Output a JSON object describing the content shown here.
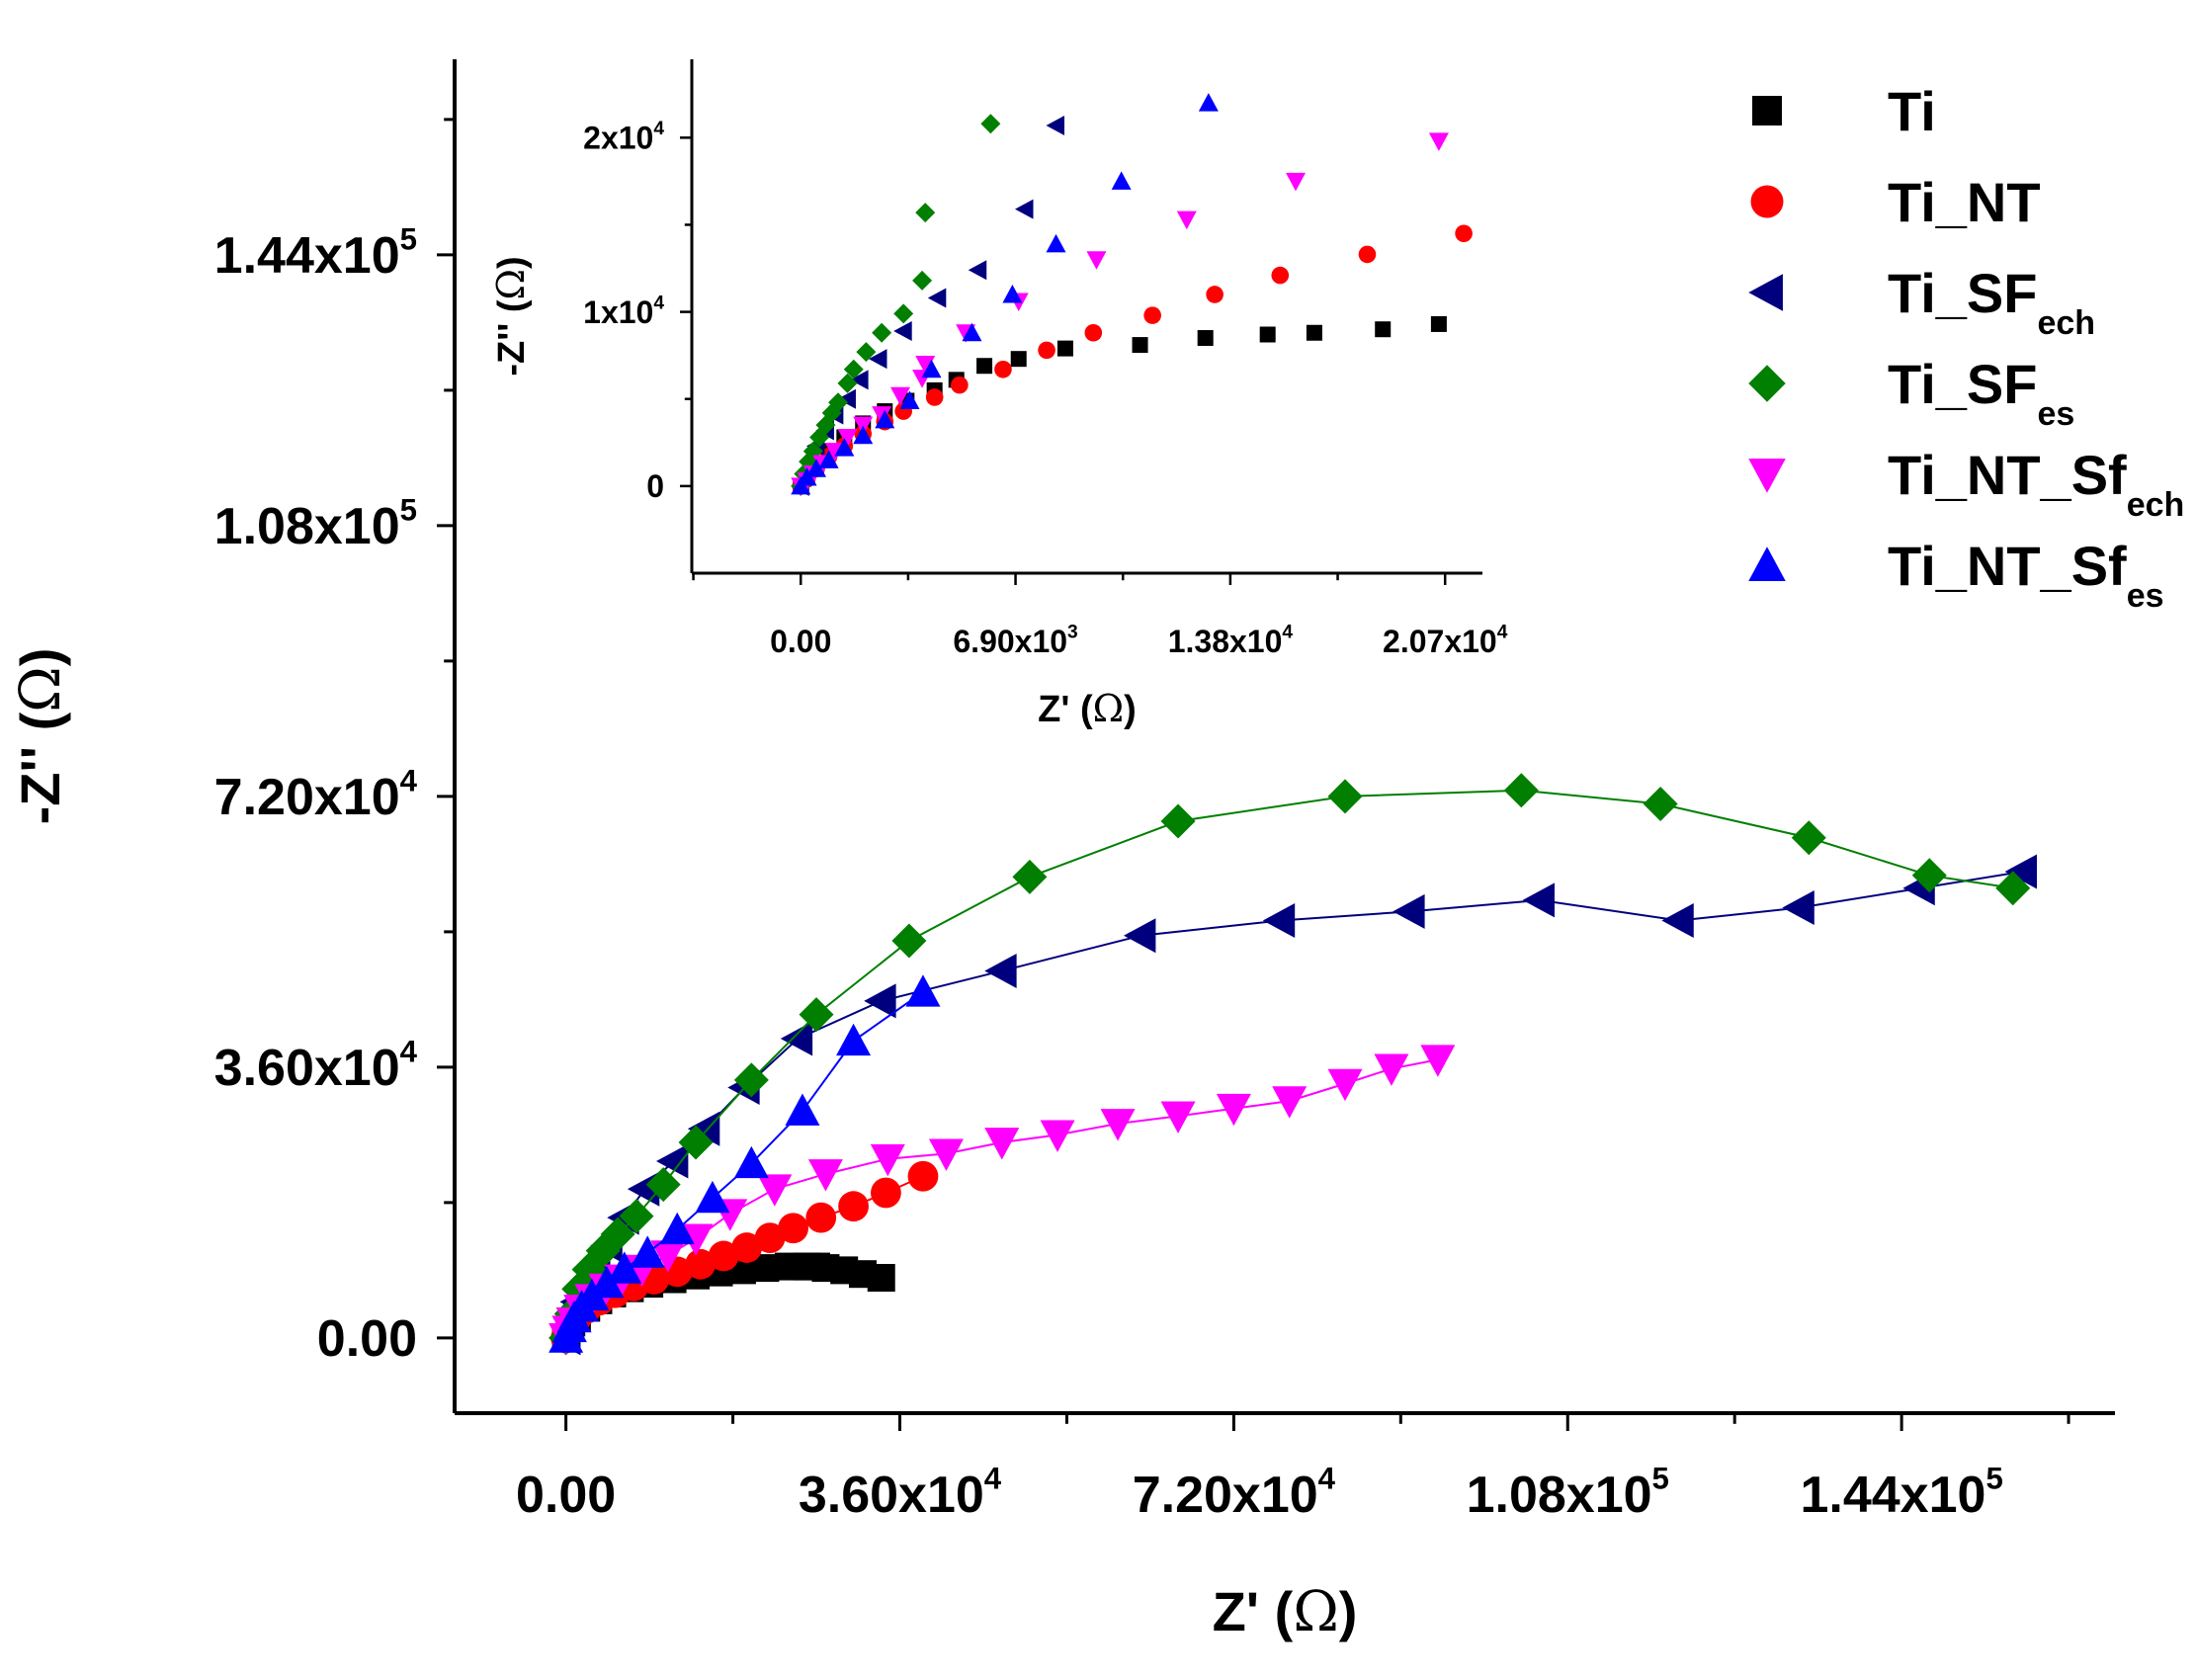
{
  "chart_data": [
    {
      "id": "main",
      "type": "scatter",
      "xlabel": "Z'",
      "ylabel": "-Z''",
      "unit": "Ω",
      "xlim": [
        -12000,
        167000
      ],
      "ylim": [
        -10000,
        170000
      ],
      "xticks": [
        {
          "value": 0,
          "mant": "0.00",
          "exp": ""
        },
        {
          "value": 36000,
          "mant": "3.60x10",
          "exp": "4"
        },
        {
          "value": 72000,
          "mant": "7.20x10",
          "exp": "4"
        },
        {
          "value": 108000,
          "mant": "1.08x10",
          "exp": "5"
        },
        {
          "value": 144000,
          "mant": "1.44x10",
          "exp": "5"
        }
      ],
      "yticks": [
        {
          "value": 0,
          "mant": "0.00",
          "exp": ""
        },
        {
          "value": 36000,
          "mant": "3.60x10",
          "exp": "4"
        },
        {
          "value": 72000,
          "mant": "7.20x10",
          "exp": "4"
        },
        {
          "value": 108000,
          "mant": "1.08x10",
          "exp": "5"
        },
        {
          "value": 144000,
          "mant": "1.44x10",
          "exp": "5"
        }
      ],
      "series": [
        {
          "name": "Ti",
          "marker": "square",
          "color": "#000000",
          "line": true,
          "points": [
            [
              0,
              0
            ],
            [
              500,
              1500
            ],
            [
              1200,
              2800
            ],
            [
              2200,
              4000
            ],
            [
              3500,
              5000
            ],
            [
              5000,
              5900
            ],
            [
              6900,
              6600
            ],
            [
              9000,
              7200
            ],
            [
              11500,
              7800
            ],
            [
              14000,
              8300
            ],
            [
              16500,
              8700
            ],
            [
              19000,
              9000
            ],
            [
              21500,
              9300
            ],
            [
              24000,
              9500
            ],
            [
              26000,
              9500
            ],
            [
              28000,
              9300
            ],
            [
              30000,
              9000
            ],
            [
              32000,
              8500
            ],
            [
              34000,
              8000
            ],
            [
              27000,
              9500
            ]
          ]
        },
        {
          "name": "Ti_NT",
          "marker": "circle",
          "color": "#ff0000",
          "line": true,
          "points": [
            [
              0,
              0
            ],
            [
              400,
              1300
            ],
            [
              1100,
              2600
            ],
            [
              2200,
              3900
            ],
            [
              3600,
              5000
            ],
            [
              5300,
              6000
            ],
            [
              7300,
              6900
            ],
            [
              9500,
              7800
            ],
            [
              12000,
              8800
            ],
            [
              14500,
              9800
            ],
            [
              17000,
              10900
            ],
            [
              19500,
              12000
            ],
            [
              22000,
              13300
            ],
            [
              24500,
              14600
            ],
            [
              27500,
              16000
            ],
            [
              31000,
              17500
            ],
            [
              34500,
              19300
            ],
            [
              38500,
              21500
            ]
          ]
        },
        {
          "name": "Ti_SF_ech",
          "marker": "tri-left",
          "color": "#00007f",
          "line": true,
          "points": [
            [
              0,
              0
            ],
            [
              500,
              2500
            ],
            [
              1200,
              4800
            ],
            [
              2000,
              7200
            ],
            [
              3200,
              9800
            ],
            [
              4500,
              12300
            ],
            [
              6300,
              16000
            ],
            [
              8500,
              19800
            ],
            [
              11600,
              23500
            ],
            [
              15000,
              27800
            ],
            [
              19300,
              33300
            ],
            [
              25000,
              39800
            ],
            [
              34000,
              44800
            ],
            [
              47000,
              48800
            ],
            [
              62000,
              53500
            ],
            [
              77000,
              55500
            ],
            [
              91000,
              56700
            ],
            [
              105000,
              58200
            ],
            [
              120000,
              55500
            ],
            [
              133000,
              57200
            ],
            [
              146000,
              59800
            ],
            [
              157000,
              62000
            ]
          ]
        },
        {
          "name": "Ti_SF_es",
          "marker": "diamond",
          "color": "#007f00",
          "line": true,
          "points": [
            [
              0,
              0
            ],
            [
              600,
              3200
            ],
            [
              1400,
              6500
            ],
            [
              2500,
              9100
            ],
            [
              4000,
              11600
            ],
            [
              5600,
              13800
            ],
            [
              7600,
              16200
            ],
            [
              10500,
              20400
            ],
            [
              14000,
              26000
            ],
            [
              20000,
              34300
            ],
            [
              27000,
              43000
            ],
            [
              37000,
              52800
            ],
            [
              50000,
              61300
            ],
            [
              66000,
              68700
            ],
            [
              84000,
              72000
            ],
            [
              103000,
              72800
            ],
            [
              118000,
              71000
            ],
            [
              134000,
              66500
            ],
            [
              147000,
              61500
            ],
            [
              156000,
              59800
            ]
          ]
        },
        {
          "name": "Ti_NT_Sf_ech",
          "marker": "tri-down",
          "color": "#ff00ff",
          "line": true,
          "points": [
            [
              0,
              0
            ],
            [
              350,
              1000
            ],
            [
              800,
              2100
            ],
            [
              1600,
              3800
            ],
            [
              2800,
              5200
            ],
            [
              4300,
              6600
            ],
            [
              6000,
              7800
            ],
            [
              8200,
              9100
            ],
            [
              11000,
              11000
            ],
            [
              14000,
              13200
            ],
            [
              17700,
              16500
            ],
            [
              22500,
              19800
            ],
            [
              28000,
              21800
            ],
            [
              34700,
              23800
            ],
            [
              41000,
              24500
            ],
            [
              47000,
              26000
            ],
            [
              53000,
              27000
            ],
            [
              59500,
              28500
            ],
            [
              66000,
              29500
            ],
            [
              72000,
              30500
            ],
            [
              78000,
              31500
            ],
            [
              84000,
              33800
            ],
            [
              89000,
              35800
            ],
            [
              94000,
              37000
            ]
          ]
        },
        {
          "name": "Ti_NT_Sf_es",
          "marker": "tri-up",
          "color": "#0000ff",
          "line": true,
          "points": [
            [
              0,
              0
            ],
            [
              400,
              1400
            ],
            [
              900,
              2700
            ],
            [
              1700,
              4100
            ],
            [
              2800,
              5600
            ],
            [
              4400,
              7300
            ],
            [
              6300,
              9200
            ],
            [
              8800,
              11300
            ],
            [
              12000,
              14400
            ],
            [
              15800,
              18600
            ],
            [
              20000,
              23200
            ],
            [
              25500,
              30200
            ],
            [
              31000,
              39500
            ],
            [
              38500,
              46000
            ]
          ]
        }
      ]
    },
    {
      "id": "inset",
      "type": "scatter",
      "xlabel": "Z'",
      "ylabel": "-Z''",
      "unit": "Ω",
      "xlim": [
        -3500,
        21900
      ],
      "ylim": [
        -5000,
        24500
      ],
      "xticks": [
        {
          "value": 0,
          "mant": "0.00",
          "exp": ""
        },
        {
          "value": 6900,
          "mant": "6.90x10",
          "exp": "3"
        },
        {
          "value": 13800,
          "mant": "1.38x10",
          "exp": "4"
        },
        {
          "value": 20700,
          "mant": "2.07x10",
          "exp": "4"
        }
      ],
      "yticks": [
        {
          "value": 0,
          "mant": "0",
          "exp": ""
        },
        {
          "value": 10000,
          "mant": "1x10",
          "exp": "4"
        },
        {
          "value": 20000,
          "mant": "2x10",
          "exp": "4"
        }
      ],
      "series": [
        {
          "name": "Ti",
          "marker": "square",
          "color": "#000000",
          "line": false,
          "points": [
            [
              0,
              0
            ],
            [
              200,
              500
            ],
            [
              500,
              1200
            ],
            [
              900,
              2000
            ],
            [
              1400,
              2800
            ],
            [
              2000,
              3600
            ],
            [
              2700,
              4300
            ],
            [
              3400,
              4900
            ],
            [
              4300,
              5500
            ],
            [
              5000,
              6100
            ],
            [
              5900,
              6900
            ],
            [
              7000,
              7300
            ],
            [
              8500,
              7900
            ],
            [
              10900,
              8100
            ],
            [
              13000,
              8500
            ],
            [
              15000,
              8700
            ],
            [
              16500,
              8800
            ],
            [
              18700,
              9000
            ],
            [
              20500,
              9300
            ]
          ]
        },
        {
          "name": "Ti_NT",
          "marker": "circle",
          "color": "#ff0000",
          "line": false,
          "points": [
            [
              0,
              0
            ],
            [
              200,
              400
            ],
            [
              500,
              1000
            ],
            [
              900,
              1700
            ],
            [
              1400,
              2300
            ],
            [
              2000,
              3000
            ],
            [
              2700,
              3700
            ],
            [
              3300,
              4300
            ],
            [
              4300,
              5100
            ],
            [
              5100,
              5800
            ],
            [
              6500,
              6700
            ],
            [
              7900,
              7800
            ],
            [
              9400,
              8800
            ],
            [
              11300,
              9800
            ],
            [
              13300,
              11000
            ],
            [
              15400,
              12100
            ],
            [
              18200,
              13300
            ],
            [
              21300,
              14500
            ]
          ]
        },
        {
          "name": "Ti_SF_ech",
          "marker": "tri-left",
          "color": "#00007f",
          "line": false,
          "points": [
            [
              0,
              0
            ],
            [
              150,
              600
            ],
            [
              300,
              1400
            ],
            [
              500,
              2300
            ],
            [
              800,
              3200
            ],
            [
              1100,
              4100
            ],
            [
              1500,
              5000
            ],
            [
              1900,
              6100
            ],
            [
              2500,
              7300
            ],
            [
              3300,
              8900
            ],
            [
              4400,
              10800
            ],
            [
              5700,
              12400
            ],
            [
              7200,
              15900
            ],
            [
              8200,
              20700
            ]
          ]
        },
        {
          "name": "Ti_SF_es",
          "marker": "diamond",
          "color": "#007f00",
          "line": false,
          "points": [
            [
              0,
              0
            ],
            [
              100,
              700
            ],
            [
              250,
              1400
            ],
            [
              400,
              2000
            ],
            [
              600,
              2800
            ],
            [
              800,
              3500
            ],
            [
              1000,
              4200
            ],
            [
              1200,
              4800
            ],
            [
              1500,
              5900
            ],
            [
              1700,
              6700
            ],
            [
              2100,
              7700
            ],
            [
              2600,
              8800
            ],
            [
              3300,
              9900
            ],
            [
              3900,
              11800
            ],
            [
              4000,
              15700
            ],
            [
              6100,
              20800
            ]
          ]
        },
        {
          "name": "Ti_NT_Sf_ech",
          "marker": "tri-down",
          "color": "#ff00ff",
          "line": false,
          "points": [
            [
              0,
              0
            ],
            [
              200,
              300
            ],
            [
              400,
              700
            ],
            [
              700,
              1300
            ],
            [
              1100,
              2000
            ],
            [
              1500,
              2800
            ],
            [
              2000,
              3500
            ],
            [
              2600,
              4100
            ],
            [
              3200,
              5200
            ],
            [
              3900,
              6200
            ],
            [
              4000,
              7000
            ],
            [
              5300,
              8800
            ],
            [
              7000,
              10600
            ],
            [
              9500,
              13000
            ],
            [
              12400,
              15300
            ],
            [
              15900,
              17500
            ],
            [
              20500,
              19800
            ]
          ]
        },
        {
          "name": "Ti_NT_Sf_es",
          "marker": "tri-up",
          "color": "#0000ff",
          "line": false,
          "points": [
            [
              0,
              0
            ],
            [
              200,
              500
            ],
            [
              500,
              1000
            ],
            [
              900,
              1500
            ],
            [
              1400,
              2200
            ],
            [
              2000,
              2900
            ],
            [
              2700,
              3800
            ],
            [
              3500,
              4900
            ],
            [
              4200,
              6700
            ],
            [
              5500,
              8800
            ],
            [
              6800,
              11000
            ],
            [
              8200,
              13900
            ],
            [
              10300,
              17500
            ],
            [
              13100,
              22000
            ]
          ]
        }
      ]
    }
  ],
  "legend": {
    "placement": "top-right",
    "items": [
      {
        "marker": "square",
        "color": "#000000",
        "base": "Ti",
        "sub": ""
      },
      {
        "marker": "circle",
        "color": "#ff0000",
        "base": "Ti_NT",
        "sub": ""
      },
      {
        "marker": "tri-left",
        "color": "#00007f",
        "base": "Ti_SF",
        "sub": "ech"
      },
      {
        "marker": "diamond",
        "color": "#007f00",
        "base": "Ti_SF",
        "sub": "es"
      },
      {
        "marker": "tri-down",
        "color": "#ff00ff",
        "base": "Ti_NT_Sf",
        "sub": "ech"
      },
      {
        "marker": "tri-up",
        "color": "#0000ff",
        "base": "Ti_NT_Sf",
        "sub": "es"
      }
    ]
  }
}
